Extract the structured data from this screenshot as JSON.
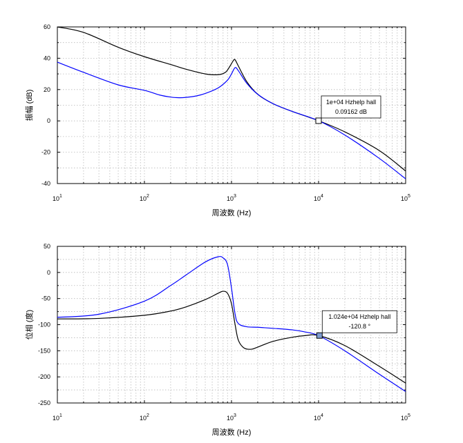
{
  "chart_data": [
    {
      "type": "line",
      "xscale": "log",
      "xlim": [
        10,
        100000
      ],
      "ylim": [
        -40,
        60
      ],
      "xlabel": "周波数 (Hz)",
      "ylabel": "振幅 (dB)",
      "xticks": [
        10,
        100,
        1000,
        10000,
        100000
      ],
      "xtick_labels": [
        [
          "10",
          "1"
        ],
        [
          "10",
          "2"
        ],
        [
          "10",
          "3"
        ],
        [
          "10",
          "4"
        ],
        [
          "10",
          "5"
        ]
      ],
      "yticks": [
        60,
        40,
        20,
        0,
        -20,
        -40
      ],
      "grid": true,
      "series": [
        {
          "color": "#000000",
          "x": [
            10,
            20,
            50,
            100,
            200,
            300,
            500,
            700,
            850,
            950,
            1050,
            1100,
            1200,
            1500,
            2000,
            3000,
            5000,
            10000,
            20000,
            50000,
            100000
          ],
          "y": [
            60,
            56.5,
            47,
            41,
            36,
            33,
            30,
            29.5,
            31,
            34.5,
            38.5,
            39,
            35,
            25,
            17,
            11,
            6,
            0.1,
            -7,
            -19,
            -32
          ]
        },
        {
          "color": "#0000ff",
          "x": [
            10,
            20,
            50,
            100,
            150,
            200,
            250,
            300,
            400,
            500,
            700,
            900,
            1000,
            1100,
            1200,
            1500,
            2000,
            3000,
            5000,
            10000,
            20000,
            50000,
            100000
          ],
          "y": [
            37.5,
            31,
            23,
            19.5,
            16.5,
            15.2,
            14.8,
            15,
            16,
            17.5,
            21,
            26,
            30,
            34,
            32,
            24,
            17,
            11,
            6,
            0.09,
            -9,
            -24,
            -37
          ]
        }
      ],
      "datatip": {
        "x": 10000,
        "y": 0.09162,
        "line1": "1e+04 Hzhelp hall",
        "line2": "0.09162 dB"
      }
    },
    {
      "type": "line",
      "xscale": "log",
      "xlim": [
        10,
        100000
      ],
      "ylim": [
        -250,
        50
      ],
      "xlabel": "周波数 (Hz)",
      "ylabel": "位相 (度)",
      "xticks": [
        10,
        100,
        1000,
        10000,
        100000
      ],
      "xtick_labels": [
        [
          "10",
          "1"
        ],
        [
          "10",
          "2"
        ],
        [
          "10",
          "3"
        ],
        [
          "10",
          "4"
        ],
        [
          "10",
          "5"
        ]
      ],
      "yticks": [
        50,
        0,
        -50,
        -100,
        -150,
        -200,
        -250
      ],
      "grid": true,
      "series": [
        {
          "color": "#000000",
          "x": [
            10,
            30,
            100,
            200,
            300,
            500,
            700,
            800,
            900,
            1000,
            1100,
            1200,
            1400,
            1700,
            2000,
            3000,
            5000,
            7000,
            10000,
            20000,
            50000,
            100000
          ],
          "y": [
            -89,
            -88,
            -82,
            -74,
            -66,
            -52,
            -40,
            -36,
            -40,
            -60,
            -100,
            -130,
            -145,
            -147,
            -143,
            -132,
            -124,
            -121,
            -120.8,
            -140,
            -180,
            -212
          ]
        },
        {
          "color": "#0000ff",
          "x": [
            10,
            30,
            100,
            200,
            300,
            500,
            700,
            800,
            900,
            1000,
            1100,
            1200,
            1500,
            2000,
            3000,
            5000,
            7000,
            10000,
            20000,
            50000,
            100000
          ],
          "y": [
            -86,
            -80,
            -55,
            -25,
            -5,
            20,
            30,
            28,
            15,
            -30,
            -80,
            -98,
            -104,
            -105,
            -107,
            -110,
            -114,
            -121,
            -150,
            -195,
            -228
          ]
        }
      ],
      "datatip": {
        "x": 10240,
        "y": -120.8,
        "line1": "1.024e+04 Hzhelp hall",
        "line2": "-120.8 °"
      }
    }
  ]
}
